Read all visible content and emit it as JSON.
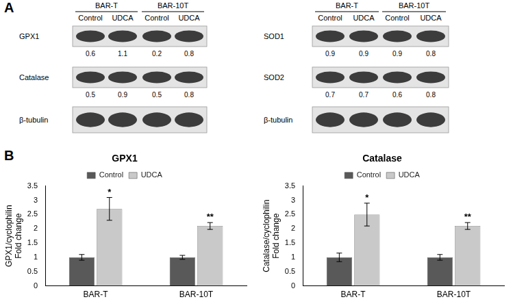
{
  "panel_labels": [
    "A",
    "B"
  ],
  "blots": [
    {
      "groups": [
        {
          "label": "BAR-T",
          "lanes": [
            "Control",
            "UDCA"
          ]
        },
        {
          "label": "BAR-10T",
          "lanes": [
            "Control",
            "UDCA"
          ]
        }
      ],
      "rows": [
        {
          "name": "GPX1",
          "values": [
            0.6,
            1.1,
            0.2,
            0.8
          ]
        },
        {
          "name": "Catalase",
          "values": [
            0.5,
            0.9,
            0.5,
            0.8
          ]
        },
        {
          "name": "β-tubulin"
        }
      ]
    },
    {
      "groups": [
        {
          "label": "BAR-T",
          "lanes": [
            "Control",
            "UDCA"
          ]
        },
        {
          "label": "BAR-10T",
          "lanes": [
            "Control",
            "UDCA"
          ]
        }
      ],
      "rows": [
        {
          "name": "SOD1",
          "values": [
            0.9,
            0.9,
            0.9,
            0.8
          ]
        },
        {
          "name": "SOD2",
          "values": [
            0.7,
            0.7,
            0.6,
            0.8
          ]
        },
        {
          "name": "β-tubulin"
        }
      ]
    }
  ],
  "chart_data": [
    {
      "type": "bar",
      "title": "GPX1",
      "y_label": [
        "GPX1/cyclophilin",
        "Fold change"
      ],
      "categories": [
        "BAR-T",
        "BAR-10T"
      ],
      "series": [
        {
          "name": "Control",
          "color": "#595959",
          "values": [
            1.0,
            1.0
          ],
          "errors": [
            0.1,
            0.07
          ]
        },
        {
          "name": "UDCA",
          "color": "#c9c9c9",
          "values": [
            2.7,
            2.1
          ],
          "errors": [
            0.4,
            0.12
          ],
          "annotations": [
            "*",
            "**"
          ]
        }
      ],
      "ylim": [
        0,
        3.5
      ],
      "yticks": [
        0,
        0.5,
        1,
        1.5,
        2,
        2.5,
        3,
        3.5
      ],
      "grid": false,
      "legend": "top"
    },
    {
      "type": "bar",
      "title": "Catalase",
      "y_label": [
        "Catalase/cyclophilin",
        "Fold change"
      ],
      "categories": [
        "BAR-T",
        "BAR-10T"
      ],
      "series": [
        {
          "name": "Control",
          "color": "#595959",
          "values": [
            1.0,
            1.0
          ],
          "errors": [
            0.15,
            0.1
          ]
        },
        {
          "name": "UDCA",
          "color": "#c9c9c9",
          "values": [
            2.5,
            2.1
          ],
          "errors": [
            0.4,
            0.12
          ],
          "annotations": [
            "*",
            "**"
          ]
        }
      ],
      "ylim": [
        0,
        3.5
      ],
      "yticks": [
        0,
        0.5,
        1,
        1.5,
        2,
        2.5,
        3,
        3.5
      ],
      "grid": false,
      "legend": "top"
    }
  ]
}
